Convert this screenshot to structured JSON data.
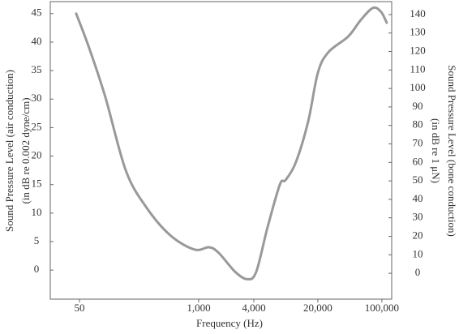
{
  "chart_data": {
    "type": "line",
    "xlabel": "Frequency (Hz)",
    "ylabel": [
      "Sound Pressure Level (air conduction)",
      "(in dB re 0.002 dyne/cm)"
    ],
    "y2label": [
      "Sound Pressure Level (bone conduction)",
      "(in dB re 1 μN)"
    ],
    "xscale": "log",
    "xlim": [
      24,
      128000
    ],
    "xticks": [
      50,
      {
        "value": 1000,
        "label": "1,000"
      },
      {
        "value": 4000,
        "label": "4,000"
      },
      {
        "value": 20000,
        "label": "20,000"
      },
      {
        "value": 100000,
        "label": "100,000"
      }
    ],
    "ylim": [
      -5.1,
      47.1
    ],
    "yticks": [
      0,
      5,
      10,
      15,
      20,
      25,
      30,
      35,
      40,
      45
    ],
    "y2lim": [
      -14,
      147
    ],
    "y2ticks": [
      0,
      10,
      20,
      30,
      40,
      50,
      60,
      70,
      80,
      90,
      100,
      110,
      120,
      130,
      140
    ],
    "x": [
      46,
      64,
      96,
      160,
      266,
      490,
      900,
      1300,
      1660,
      2500,
      3400,
      4250,
      5650,
      7700,
      8900,
      11500,
      15700,
      20000,
      26000,
      43000,
      59000,
      80000,
      98000,
      113000
    ],
    "series": [
      {
        "color": "#999999",
        "values": [
          45,
          38.9,
          30.3,
          17.5,
          11.1,
          6.1,
          3.6,
          4.0,
          3.0,
          -0.3,
          -1.6,
          -0.3,
          7.5,
          15.0,
          15.8,
          18.9,
          26.1,
          34.6,
          38.2,
          41.0,
          43.9,
          46.0,
          45.3,
          43.4
        ]
      }
    ]
  }
}
